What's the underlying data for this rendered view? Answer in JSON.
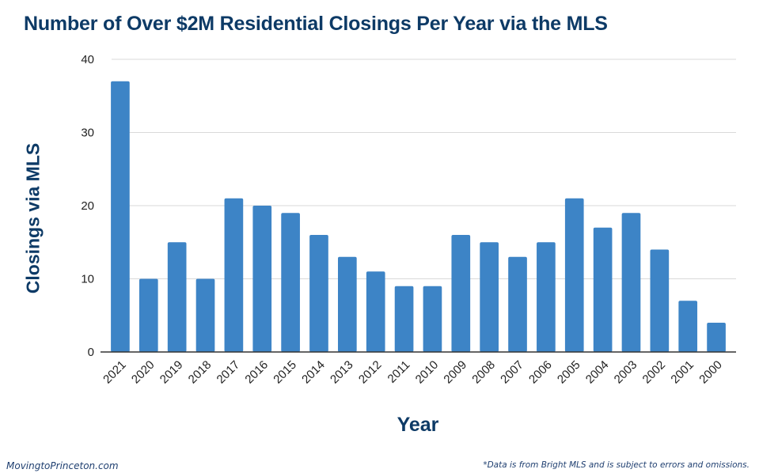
{
  "chart_data": {
    "type": "bar",
    "title": "Number of Over $2M Residential Closings Per Year via the MLS",
    "xlabel": "Year",
    "ylabel": "Closings via MLS",
    "categories": [
      "2021",
      "2020",
      "2019",
      "2018",
      "2017",
      "2016",
      "2015",
      "2014",
      "2013",
      "2012",
      "2011",
      "2010",
      "2009",
      "2008",
      "2007",
      "2006",
      "2005",
      "2004",
      "2003",
      "2002",
      "2001",
      "2000"
    ],
    "values": [
      37,
      10,
      15,
      10,
      21,
      20,
      19,
      16,
      13,
      11,
      9,
      9,
      16,
      15,
      13,
      15,
      21,
      17,
      19,
      14,
      7,
      4
    ],
    "ylim": [
      0,
      40
    ],
    "yticks": [
      0,
      10,
      20,
      30,
      40
    ],
    "grid": true,
    "legend": "none",
    "bar_color": "#3d84c6"
  },
  "footer": {
    "left": "MovingtoPrinceton.com",
    "right": "*Data is from Bright MLS and is subject to errors and omissions."
  }
}
